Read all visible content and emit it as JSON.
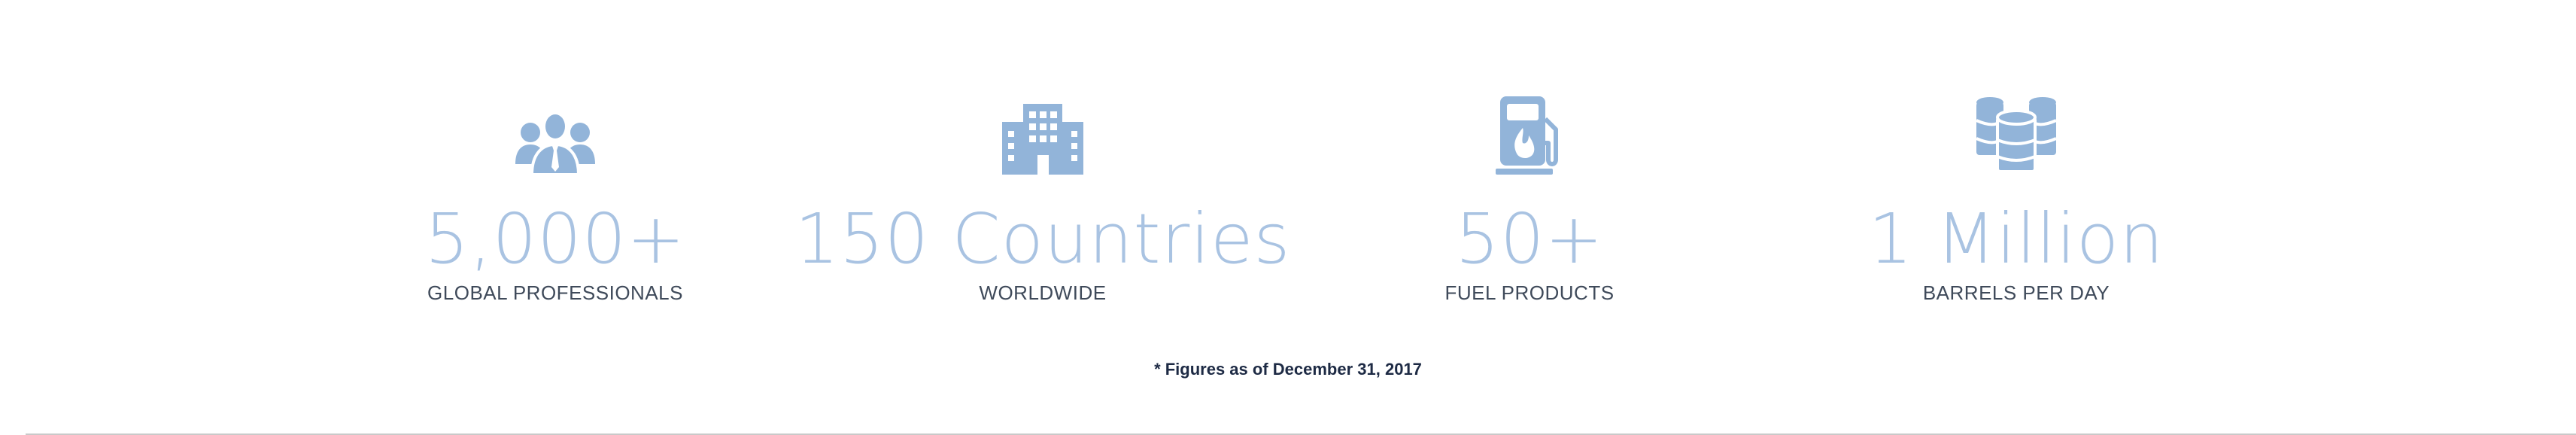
{
  "accent_color": "#92b4d9",
  "stats": [
    {
      "icon": "people-group-icon",
      "value": "5,000+",
      "label": "GLOBAL PROFESSIONALS"
    },
    {
      "icon": "office-building-icon",
      "value": "150 Countries",
      "label": "WORLDWIDE"
    },
    {
      "icon": "fuel-pump-icon",
      "value": "50+",
      "label": "FUEL PRODUCTS"
    },
    {
      "icon": "oil-barrels-icon",
      "value": "1 Million",
      "label": "BARRELS PER DAY"
    }
  ],
  "footnote": "* Figures as of December 31, 2017"
}
